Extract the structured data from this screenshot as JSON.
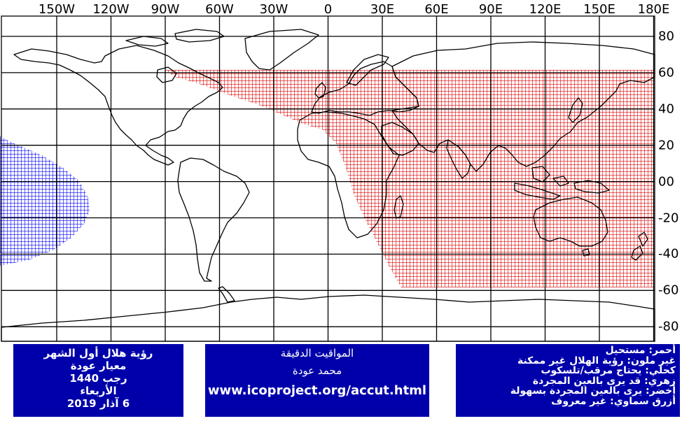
{
  "map": {
    "longitude_labels": [
      "150W",
      "120W",
      "90W",
      "60W",
      "30W",
      "0",
      "30E",
      "60E",
      "90E",
      "120E",
      "150E",
      "180E"
    ],
    "latitude_labels": [
      "80",
      "60",
      "40",
      "20",
      "00",
      "-20",
      "-40",
      "-60",
      "-80"
    ],
    "colors": {
      "impossible": "#dd0000",
      "unknown": "#0000ff",
      "grid": "#000000",
      "coast": "#000000"
    },
    "zones": [
      {
        "name": "impossible",
        "color": "#dd0000",
        "description_ref": "legend.line1"
      },
      {
        "name": "unknown",
        "color": "#0000ff",
        "description_ref": "legend.line7"
      }
    ]
  },
  "info_left": {
    "line1": "رؤية هلال أول الشهر",
    "line2": "معيار عودة",
    "line3": "رجب 1440",
    "line4": "الأربعاء",
    "line5": "6 آذار 2019"
  },
  "info_mid": {
    "line1": "المواقيت الدقيقة",
    "line2": "محمد عودة",
    "url": "www.icoproject.org/accut.html"
  },
  "legend": {
    "line1": "أحمر: مستحيل",
    "line2": "غير ملون: رؤية الهلال غير ممكنة",
    "line3": "كحلي: يحتاج مرقب/تلسكوب",
    "line4": "زهري: قد يرى بالعين المجردة",
    "line5": "أخضر: يرى بالعين المجردة بسهولة",
    "line6": "أزرق سماوي: غير معروف"
  }
}
